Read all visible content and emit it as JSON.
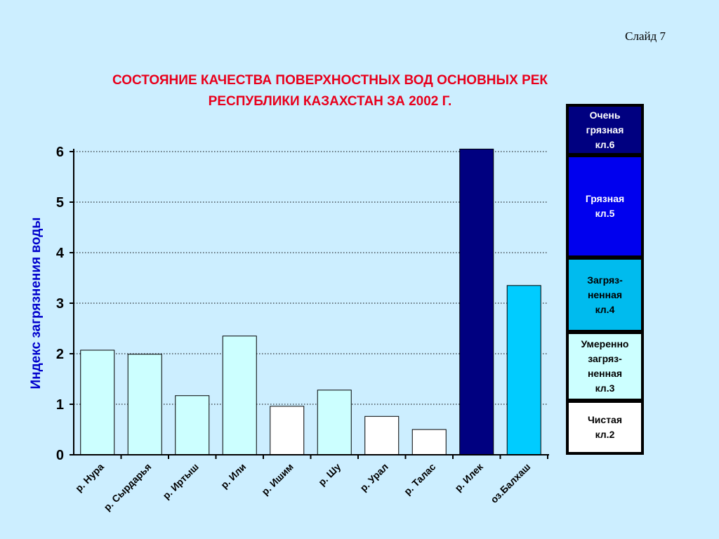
{
  "slide_label": "Слайд 7",
  "title_lines": [
    "СОСТОЯНИЕ КАЧЕСТВА ПОВЕРХНОСТНЫХ ВОД ОСНОВНЫХ РЕК",
    "РЕСПУБЛИКИ КАЗАХСТАН ЗА  2002 Г."
  ],
  "colors": {
    "background": "#cceeff",
    "title": "#e8001c",
    "axis_label": "#0000cc"
  },
  "chart_data": {
    "type": "bar",
    "title": "СОСТОЯНИЕ КАЧЕСТВА ПОВЕРХНОСТНЫХ ВОД ОСНОВНЫХ РЕК РЕСПУБЛИКИ КАЗАХСТАН ЗА  2002 Г.",
    "xlabel": "",
    "ylabel": "Индекс загрязнения воды",
    "ylim": [
      0,
      6
    ],
    "yticks": [
      "0",
      "1",
      "2",
      "3",
      "4",
      "5",
      "6"
    ],
    "grid": "dotted horizontal",
    "categories": [
      "р. Нура",
      "р. Сырдарья",
      "р. Иртыш",
      "р. Или",
      "р. Ишим",
      "р. Шу",
      "р. Урал",
      "р. Талас",
      "р. Илек",
      "оз.Балхаш"
    ],
    "values": [
      2.07,
      1.99,
      1.17,
      2.35,
      0.96,
      1.28,
      0.76,
      0.5,
      6.05,
      3.35
    ],
    "bar_colors": [
      "#ccffff",
      "#ccffff",
      "#ccffff",
      "#ccffff",
      "#ffffff",
      "#ccffff",
      "#ffffff",
      "#ffffff",
      "#000080",
      "#00ccff"
    ]
  },
  "legend": [
    {
      "text": "Очень\nгрязная\nкл.6",
      "bg": "#000080",
      "fg": "#ffffff"
    },
    {
      "text": "Грязная\nкл.5",
      "bg": "#0000ee",
      "fg": "#ffffff"
    },
    {
      "text": "Загряз-\nненная\nкл.4",
      "bg": "#00bbee",
      "fg": "#000000"
    },
    {
      "text": "Умеренно\nзагряз-\nненная\nкл.3",
      "bg": "#ccffff",
      "fg": "#000000"
    },
    {
      "text": "Чистая\nкл.2",
      "bg": "#ffffff",
      "fg": "#000000"
    }
  ]
}
